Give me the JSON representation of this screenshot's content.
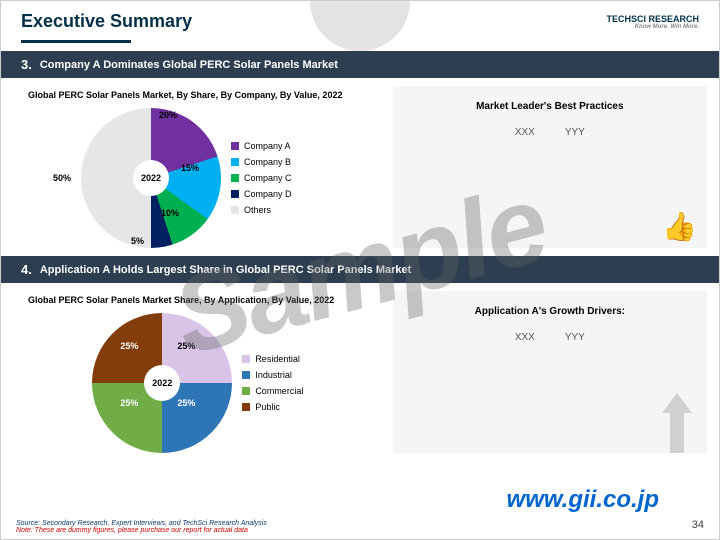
{
  "title": "Executive Summary",
  "logo": {
    "main": "TECHSCI RESEARCH",
    "sub": "Know More. Win More."
  },
  "section3": {
    "num": "3.",
    "heading": "Company A Dominates Global PERC Solar Panels Market",
    "chart_title": "Global PERC Solar Panels Market, By Share, By Company, By Value, 2022",
    "center_label": "2022",
    "slices": [
      {
        "label": "Company A",
        "pct": 20,
        "color": "#7030a0",
        "text": "20%"
      },
      {
        "label": "Company B",
        "pct": 15,
        "color": "#00b0f0",
        "text": "15%"
      },
      {
        "label": "Company C",
        "pct": 10,
        "color": "#00b050",
        "text": "10%"
      },
      {
        "label": "Company D",
        "pct": 5,
        "color": "#002060",
        "text": "5%"
      },
      {
        "label": "Others",
        "pct": 50,
        "color": "#e7e6e6",
        "text": "50%"
      }
    ],
    "panel": {
      "title": "Market Leader's Best Practices",
      "v1": "XXX",
      "v2": "YYY"
    }
  },
  "section4": {
    "num": "4.",
    "heading": "Application A Holds Largest Share in Global PERC Solar Panels Market",
    "chart_title": "Global PERC Solar Panels Market Share, By Application, By Value, 2022",
    "center_label": "2022",
    "slices": [
      {
        "label": "Residential",
        "pct": 25,
        "color": "#d9c3e6",
        "text": "25%"
      },
      {
        "label": "Industrial",
        "pct": 25,
        "color": "#2e75b6",
        "text": "25%"
      },
      {
        "label": "Commercial",
        "pct": 25,
        "color": "#70ad47",
        "text": "25%"
      },
      {
        "label": "Public",
        "pct": 25,
        "color": "#833c0c",
        "text": "25%"
      }
    ],
    "panel": {
      "title": "Application A's Growth Drivers:",
      "v1": "XXX",
      "v2": "YYY"
    }
  },
  "footer": {
    "source": "Source: Secondary Research, Expert Interviews, and TechSci Research Analysis",
    "note": "Note: These are dummy figures, please purchase our report for actual data"
  },
  "url": "www.gii.co.jp",
  "page_number": "34",
  "watermark": "Sample"
}
